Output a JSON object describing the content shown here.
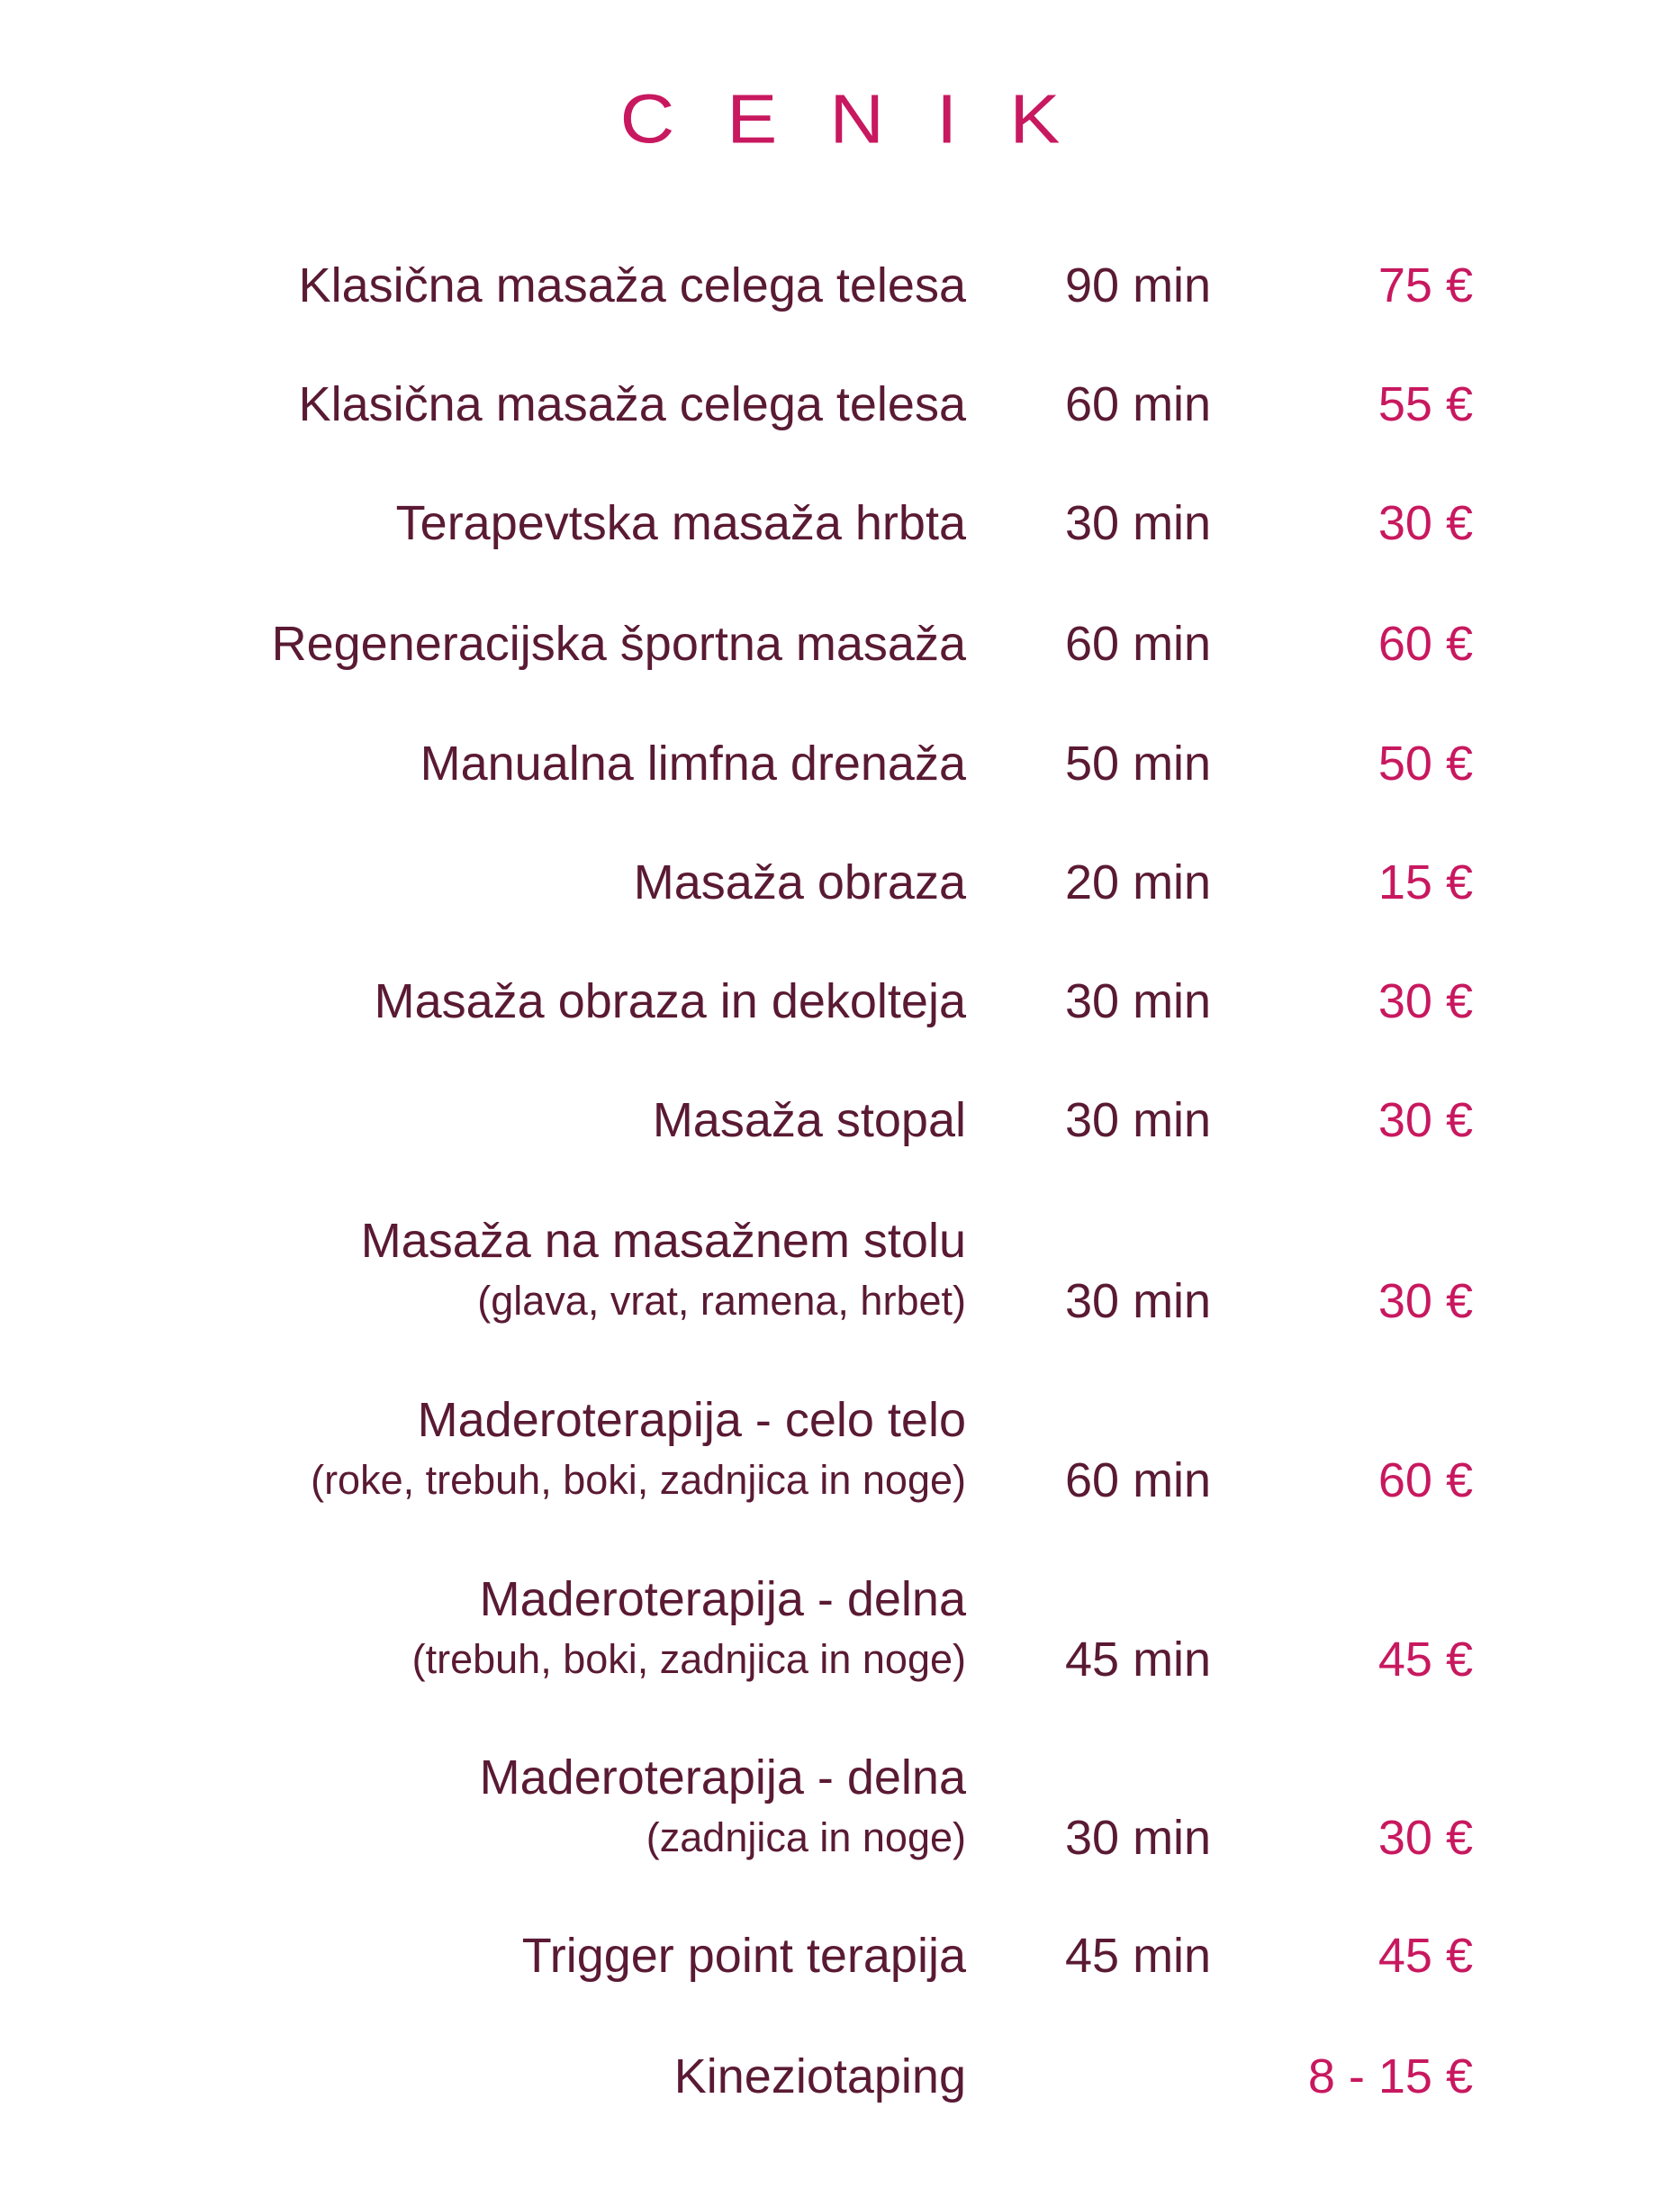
{
  "title": "CENIK",
  "colors": {
    "text": "#5a1a33",
    "accent": "#c8185f"
  },
  "items": [
    {
      "name": "Klasična masaža celega telesa",
      "duration": "90 min",
      "price": "75 €"
    },
    {
      "name": "Klasična masaža celega telesa",
      "duration": "60 min",
      "price": "55 €"
    },
    {
      "name": "Terapevtska masaža hrbta",
      "duration": "30 min",
      "price": "30 €"
    },
    {
      "name": "Regeneracijska športna masaža",
      "duration": "60 min",
      "price": "60 €"
    },
    {
      "name": "Manualna limfna drenaža",
      "duration": "50 min",
      "price": "50 €"
    },
    {
      "name": "Masaža obraza",
      "duration": "20 min",
      "price": "15 €"
    },
    {
      "name": "Masaža obraza in dekolteja",
      "duration": "30 min",
      "price": "30 €"
    },
    {
      "name": "Masaža stopal",
      "duration": "30 min",
      "price": "30 €"
    },
    {
      "name": "Masaža na masažnem stolu",
      "detail": "(glava, vrat, ramena, hrbet)",
      "duration": "30 min",
      "price": "30 €"
    },
    {
      "name": "Maderoterapija - celo telo",
      "detail": "(roke, trebuh, boki, zadnjica in noge)",
      "duration": "60 min",
      "price": "60 €"
    },
    {
      "name": "Maderoterapija - delna",
      "detail": "(trebuh, boki, zadnjica in noge)",
      "duration": "45 min",
      "price": "45 €"
    },
    {
      "name": "Maderoterapija - delna",
      "detail": "(zadnjica in noge)",
      "duration": "30 min",
      "price": "30 €"
    },
    {
      "name": "Trigger point terapija",
      "duration": "45 min",
      "price": "45 €"
    },
    {
      "name": "Kineziotaping",
      "price": "8 - 15 €"
    }
  ]
}
